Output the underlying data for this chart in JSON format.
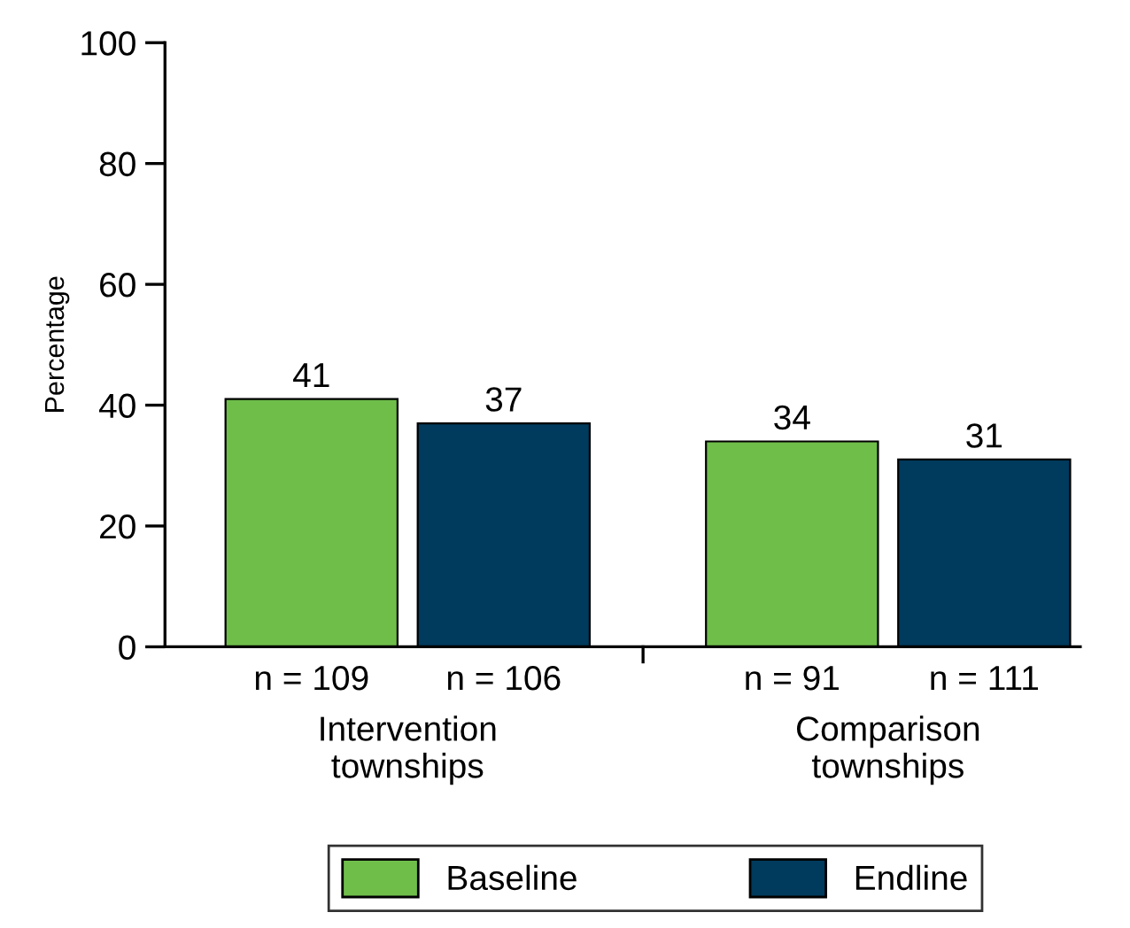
{
  "chart_data": {
    "type": "bar",
    "ylabel": "Percentage",
    "categories": [
      "Intervention\ntownships",
      "Comparison\ntownships"
    ],
    "series": [
      {
        "name": "Baseline",
        "color": "#6fbe4a",
        "values": [
          41,
          34
        ]
      },
      {
        "name": "Endline",
        "color": "#003a5d",
        "values": [
          37,
          31
        ]
      }
    ],
    "annotations": [
      "n = 109",
      "n = 106",
      "n = 91",
      "n = 111"
    ],
    "ylim": [
      0,
      100
    ],
    "yticks": [
      0,
      20,
      40,
      60,
      80,
      100
    ],
    "data_labels": true,
    "grid": false,
    "legend": "bottom"
  }
}
